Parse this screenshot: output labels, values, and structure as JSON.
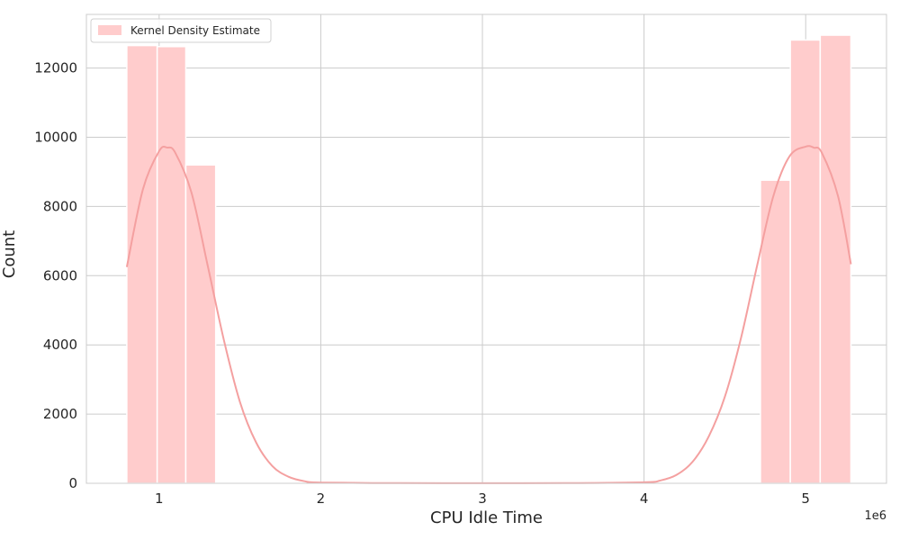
{
  "chart_data": {
    "type": "bar",
    "xlabel": "CPU Idle Time",
    "ylabel": "Count",
    "x_offset_label": "1e6",
    "xlim": [
      0.55,
      5.5
    ],
    "ylim": [
      0,
      13550
    ],
    "xticks": [
      1,
      2,
      3,
      4,
      5
    ],
    "xtick_labels": [
      "1",
      "2",
      "3",
      "4",
      "5"
    ],
    "yticks": [
      0,
      2000,
      4000,
      6000,
      8000,
      10000,
      12000
    ],
    "ytick_labels": [
      "0",
      "2000",
      "4000",
      "6000",
      "8000",
      "10000",
      "12000"
    ],
    "grid": true,
    "legend": {
      "entries": [
        "Kernel Density Estimate"
      ],
      "placement": "top-left"
    },
    "bars": [
      {
        "x0": 0.8,
        "x1": 0.988,
        "value": 12650
      },
      {
        "x0": 0.988,
        "x1": 1.165,
        "value": 12620
      },
      {
        "x0": 1.165,
        "x1": 1.35,
        "value": 9200
      },
      {
        "x0": 4.72,
        "x1": 4.905,
        "value": 8760
      },
      {
        "x0": 4.905,
        "x1": 5.09,
        "value": 12810
      },
      {
        "x0": 5.09,
        "x1": 5.28,
        "value": 12950
      }
    ],
    "kde": {
      "x": [
        0.8,
        0.9,
        1.0,
        1.05,
        1.1,
        1.2,
        1.3,
        1.4,
        1.5,
        1.6,
        1.7,
        1.8,
        1.9,
        2.0,
        2.5,
        3.0,
        3.5,
        4.0,
        4.1,
        4.2,
        4.3,
        4.4,
        4.5,
        4.6,
        4.7,
        4.8,
        4.9,
        5.0,
        5.05,
        5.1,
        5.2,
        5.28
      ],
      "y": [
        6250,
        8500,
        9600,
        9700,
        9550,
        8400,
        6300,
        4150,
        2350,
        1180,
        500,
        190,
        60,
        20,
        5,
        3,
        5,
        30,
        80,
        240,
        620,
        1350,
        2500,
        4200,
        6300,
        8300,
        9450,
        9730,
        9700,
        9550,
        8300,
        6330
      ]
    },
    "colors": {
      "bar_fill": "#ffcccc",
      "kde_line": "#f4a0a0",
      "grid": "#cccccc",
      "text": "#262626"
    }
  }
}
